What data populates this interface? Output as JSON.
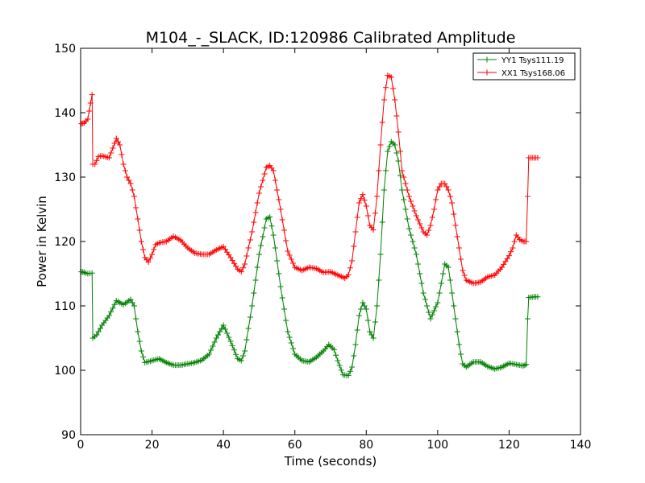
{
  "chart_data": {
    "type": "line",
    "title": "M104_-_SLACK, ID:120986 Calibrated Amplitude",
    "xlabel": "Time (seconds)",
    "ylabel": "Power in Kelvin",
    "xlim": [
      0,
      140
    ],
    "ylim": [
      90,
      150
    ],
    "xticks": [
      "0",
      "20",
      "40",
      "60",
      "80",
      "100",
      "120",
      "140"
    ],
    "yticks": [
      "90",
      "100",
      "110",
      "120",
      "130",
      "140",
      "150"
    ],
    "grid": false,
    "legend_position": "top-right",
    "marker": "plus",
    "series": [
      {
        "name": "YY1 Tsys111.19",
        "color": "#008000",
        "points": [
          [
            0.2,
            115.3
          ],
          [
            1.0,
            115.2
          ],
          [
            2.0,
            115.0
          ],
          [
            3.2,
            115.1
          ],
          [
            3.4,
            105.0
          ],
          [
            4.5,
            105.5
          ],
          [
            6.0,
            107.0
          ],
          [
            8.0,
            108.5
          ],
          [
            10.0,
            110.8
          ],
          [
            12.0,
            110.2
          ],
          [
            14.0,
            111.0
          ],
          [
            15.0,
            110.0
          ],
          [
            16.0,
            106.0
          ],
          [
            17.0,
            103.0
          ],
          [
            18.0,
            101.2
          ],
          [
            20.0,
            101.5
          ],
          [
            22.0,
            101.8
          ],
          [
            24.0,
            101.2
          ],
          [
            26.0,
            100.8
          ],
          [
            28.0,
            100.8
          ],
          [
            30.0,
            101.0
          ],
          [
            32.0,
            101.2
          ],
          [
            34.0,
            101.6
          ],
          [
            36.0,
            102.5
          ],
          [
            38.0,
            105.0
          ],
          [
            40.0,
            107.0
          ],
          [
            42.0,
            104.5
          ],
          [
            44.0,
            101.8
          ],
          [
            45.0,
            101.5
          ],
          [
            46.0,
            103.0
          ],
          [
            48.0,
            110.0
          ],
          [
            50.0,
            118.0
          ],
          [
            52.0,
            123.5
          ],
          [
            53.0,
            123.8
          ],
          [
            54.0,
            121.0
          ],
          [
            56.0,
            113.0
          ],
          [
            58.0,
            106.0
          ],
          [
            60.0,
            102.5
          ],
          [
            62.0,
            101.5
          ],
          [
            64.0,
            101.3
          ],
          [
            66.0,
            102.0
          ],
          [
            68.0,
            103.0
          ],
          [
            69.5,
            104.0
          ],
          [
            71.0,
            103.2
          ],
          [
            72.0,
            101.5
          ],
          [
            73.5,
            99.3
          ],
          [
            75.0,
            99.2
          ],
          [
            76.0,
            100.5
          ],
          [
            77.0,
            104.0
          ],
          [
            78.0,
            108.5
          ],
          [
            79.0,
            110.5
          ],
          [
            80.0,
            109.5
          ],
          [
            81.0,
            106.0
          ],
          [
            82.0,
            105.0
          ],
          [
            83.0,
            110.0
          ],
          [
            84.0,
            118.0
          ],
          [
            85.0,
            128.0
          ],
          [
            86.0,
            134.0
          ],
          [
            87.0,
            135.5
          ],
          [
            88.0,
            135.0
          ],
          [
            89.0,
            132.5
          ],
          [
            90.0,
            128.0
          ],
          [
            92.0,
            122.0
          ],
          [
            94.0,
            118.0
          ],
          [
            96.0,
            112.0
          ],
          [
            98.0,
            108.0
          ],
          [
            100.0,
            110.5
          ],
          [
            102.0,
            116.5
          ],
          [
            103.0,
            116.0
          ],
          [
            104.0,
            112.0
          ],
          [
            106.0,
            104.0
          ],
          [
            107.0,
            101.0
          ],
          [
            108.0,
            100.5
          ],
          [
            110.0,
            101.3
          ],
          [
            112.0,
            101.3
          ],
          [
            114.0,
            100.6
          ],
          [
            116.0,
            100.2
          ],
          [
            118.0,
            100.5
          ],
          [
            120.0,
            101.1
          ],
          [
            122.0,
            100.9
          ],
          [
            124.0,
            100.7
          ],
          [
            124.8,
            100.9
          ],
          [
            125.2,
            108.0
          ],
          [
            125.5,
            111.3
          ],
          [
            127.0,
            111.4
          ],
          [
            128.0,
            111.4
          ]
        ]
      },
      {
        "name": "XX1 Tsys168.06",
        "color": "#ff0000",
        "points": [
          [
            0.2,
            138.3
          ],
          [
            1.0,
            138.4
          ],
          [
            2.0,
            139.0
          ],
          [
            2.8,
            141.5
          ],
          [
            3.2,
            142.8
          ],
          [
            3.4,
            132.0
          ],
          [
            4.0,
            132.0
          ],
          [
            5.0,
            133.2
          ],
          [
            6.0,
            133.3
          ],
          [
            8.0,
            133.0
          ],
          [
            9.0,
            134.5
          ],
          [
            10.0,
            136.0
          ],
          [
            11.0,
            135.0
          ],
          [
            12.0,
            132.0
          ],
          [
            13.0,
            130.0
          ],
          [
            14.0,
            129.0
          ],
          [
            15.0,
            127.0
          ],
          [
            16.0,
            123.5
          ],
          [
            17.0,
            120.0
          ],
          [
            18.0,
            117.5
          ],
          [
            19.0,
            116.8
          ],
          [
            20.0,
            118.0
          ],
          [
            21.0,
            119.5
          ],
          [
            22.0,
            119.8
          ],
          [
            24.0,
            120.0
          ],
          [
            26.0,
            120.8
          ],
          [
            28.0,
            120.2
          ],
          [
            30.0,
            119.0
          ],
          [
            32.0,
            118.2
          ],
          [
            34.0,
            118.0
          ],
          [
            36.0,
            118.0
          ],
          [
            38.0,
            118.7
          ],
          [
            40.0,
            119.2
          ],
          [
            42.0,
            117.5
          ],
          [
            44.0,
            115.7
          ],
          [
            45.0,
            115.3
          ],
          [
            46.0,
            116.5
          ],
          [
            48.0,
            121.5
          ],
          [
            50.0,
            127.5
          ],
          [
            52.0,
            131.5
          ],
          [
            53.0,
            131.8
          ],
          [
            54.0,
            131.0
          ],
          [
            56.0,
            125.0
          ],
          [
            58.0,
            118.5
          ],
          [
            60.0,
            116.0
          ],
          [
            62.0,
            115.5
          ],
          [
            64.0,
            116.0
          ],
          [
            66.0,
            115.8
          ],
          [
            68.0,
            115.2
          ],
          [
            70.0,
            115.3
          ],
          [
            72.0,
            114.8
          ],
          [
            74.0,
            114.3
          ],
          [
            75.0,
            114.8
          ],
          [
            76.0,
            117.0
          ],
          [
            77.0,
            121.5
          ],
          [
            78.0,
            126.0
          ],
          [
            79.0,
            127.3
          ],
          [
            80.0,
            125.5
          ],
          [
            81.0,
            122.5
          ],
          [
            82.0,
            121.8
          ],
          [
            83.0,
            127.0
          ],
          [
            84.0,
            135.0
          ],
          [
            85.0,
            142.0
          ],
          [
            86.0,
            145.8
          ],
          [
            87.0,
            145.5
          ],
          [
            88.0,
            142.0
          ],
          [
            89.0,
            137.0
          ],
          [
            90.0,
            131.0
          ],
          [
            92.0,
            127.0
          ],
          [
            94.0,
            124.0
          ],
          [
            96.0,
            121.5
          ],
          [
            97.0,
            121.0
          ],
          [
            98.0,
            122.5
          ],
          [
            99.0,
            125.0
          ],
          [
            100.0,
            128.0
          ],
          [
            101.0,
            129.0
          ],
          [
            102.0,
            129.0
          ],
          [
            103.0,
            128.0
          ],
          [
            104.0,
            126.0
          ],
          [
            106.0,
            119.0
          ],
          [
            107.0,
            115.5
          ],
          [
            108.0,
            114.0
          ],
          [
            110.0,
            113.5
          ],
          [
            112.0,
            113.7
          ],
          [
            114.0,
            114.5
          ],
          [
            116.0,
            114.8
          ],
          [
            118.0,
            116.0
          ],
          [
            120.0,
            117.8
          ],
          [
            121.0,
            119.0
          ],
          [
            122.0,
            121.0
          ],
          [
            123.0,
            120.3
          ],
          [
            124.0,
            120.0
          ],
          [
            124.8,
            120.0
          ],
          [
            125.2,
            127.0
          ],
          [
            125.5,
            133.0
          ],
          [
            127.0,
            133.0
          ],
          [
            128.0,
            133.0
          ]
        ]
      }
    ]
  }
}
